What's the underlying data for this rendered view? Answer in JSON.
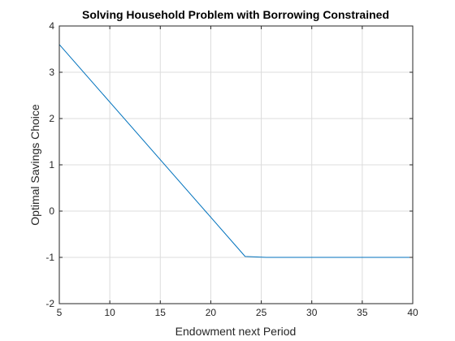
{
  "chart_data": {
    "type": "line",
    "title": "Solving Household Problem with Borrowing Constrained",
    "xlabel": "Endowment next Period",
    "ylabel": "Optimal Savings Choice",
    "xlim": [
      5,
      40
    ],
    "ylim": [
      -2,
      4
    ],
    "xticks": [
      5,
      10,
      15,
      20,
      25,
      30,
      35,
      40
    ],
    "yticks": [
      -2,
      -1,
      0,
      1,
      2,
      3,
      4
    ],
    "grid": true,
    "legend": "none",
    "series": [
      {
        "color": "#0072bd",
        "x": [
          5,
          23.4,
          25.5,
          40
        ],
        "y": [
          3.6,
          -0.98,
          -1.0,
          -1.0
        ]
      }
    ]
  }
}
